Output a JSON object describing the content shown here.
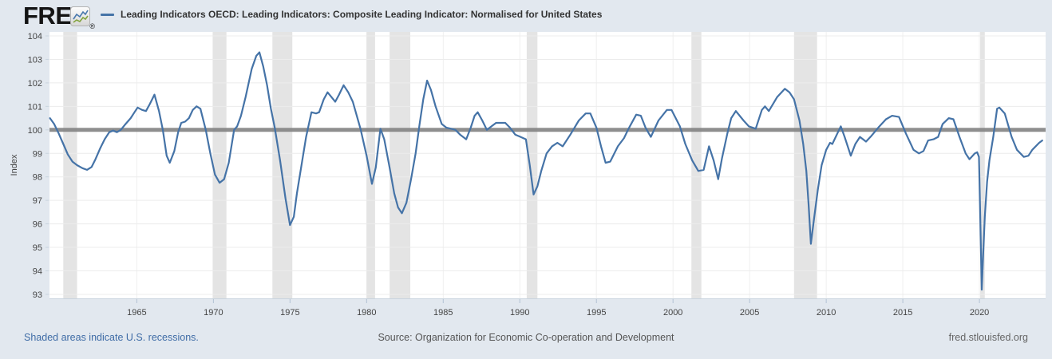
{
  "header": {
    "logo_text": "FRED",
    "logo_registered": "®",
    "legend_label": "Leading Indicators OECD: Leading Indicators: Composite Leading Indicator: Normalised for United States"
  },
  "footer": {
    "recessions_note": "Shaded areas indicate U.S. recessions.",
    "source": "Source: Organization for Economic Co-operation and Development",
    "site": "fred.stlouisfed.org"
  },
  "colors": {
    "background": "#e2e8ef",
    "plot_background": "#ffffff",
    "line": "#4573a7",
    "logo_icon_blue": "#4978ad",
    "logo_icon_green": "#82a33f",
    "reference_line": "#808080",
    "recession_band": "#e4e4e4",
    "h_gridline": "#ececec",
    "v_gridline": "#efefef",
    "axis_line": "#c9d4de",
    "tick_mark": "#b3c2d4",
    "tick_label": "#444444",
    "link": "#3f6ca6"
  },
  "chart_data": {
    "type": "line",
    "title": "Leading Indicators OECD: Leading Indicators: Composite Leading Indicator: Normalised for United States",
    "xlabel": "",
    "ylabel": "Index",
    "xlim": [
      1959.3,
      2024.32
    ],
    "ylim": [
      93,
      104
    ],
    "x_ticks": [
      1965,
      1970,
      1975,
      1980,
      1985,
      1990,
      1995,
      2000,
      2005,
      2010,
      2015,
      2020
    ],
    "y_ticks": [
      93,
      94,
      95,
      96,
      97,
      98,
      99,
      100,
      101,
      102,
      103,
      104
    ],
    "grid": true,
    "legend_position": "top",
    "reference_line_y": 100,
    "recessions": [
      [
        1960.2,
        1961.1
      ],
      [
        1969.95,
        1970.85
      ],
      [
        1973.85,
        1975.15
      ],
      [
        1980.0,
        1980.55
      ],
      [
        1981.5,
        1982.85
      ],
      [
        1990.45,
        1991.15
      ],
      [
        2001.2,
        2001.85
      ],
      [
        2007.9,
        2009.4
      ],
      [
        2020.05,
        2020.35
      ]
    ],
    "series": [
      {
        "name": "Leading Indicators OECD: Leading Indicators: Composite Leading Indicator: Normalised for United States",
        "points": [
          [
            1959.33,
            100.5
          ],
          [
            1959.6,
            100.25
          ],
          [
            1959.9,
            99.85
          ],
          [
            1960.2,
            99.4
          ],
          [
            1960.5,
            98.95
          ],
          [
            1960.8,
            98.65
          ],
          [
            1961.1,
            98.5
          ],
          [
            1961.45,
            98.37
          ],
          [
            1961.75,
            98.3
          ],
          [
            1962.05,
            98.42
          ],
          [
            1962.3,
            98.75
          ],
          [
            1962.6,
            99.2
          ],
          [
            1962.9,
            99.6
          ],
          [
            1963.2,
            99.9
          ],
          [
            1963.45,
            99.97
          ],
          [
            1963.7,
            99.9
          ],
          [
            1963.95,
            100.0
          ],
          [
            1964.2,
            100.2
          ],
          [
            1964.6,
            100.5
          ],
          [
            1964.85,
            100.75
          ],
          [
            1965.05,
            100.95
          ],
          [
            1965.35,
            100.85
          ],
          [
            1965.6,
            100.8
          ],
          [
            1965.85,
            101.1
          ],
          [
            1966.15,
            101.5
          ],
          [
            1966.45,
            100.8
          ],
          [
            1966.7,
            100.0
          ],
          [
            1966.95,
            98.9
          ],
          [
            1967.15,
            98.6
          ],
          [
            1967.45,
            99.1
          ],
          [
            1967.7,
            99.9
          ],
          [
            1967.9,
            100.3
          ],
          [
            1968.15,
            100.35
          ],
          [
            1968.4,
            100.5
          ],
          [
            1968.65,
            100.85
          ],
          [
            1968.9,
            101.0
          ],
          [
            1969.15,
            100.9
          ],
          [
            1969.5,
            100.0
          ],
          [
            1969.8,
            99.0
          ],
          [
            1970.1,
            98.1
          ],
          [
            1970.4,
            97.75
          ],
          [
            1970.7,
            97.9
          ],
          [
            1971.0,
            98.6
          ],
          [
            1971.35,
            100.0
          ],
          [
            1971.55,
            100.15
          ],
          [
            1971.8,
            100.6
          ],
          [
            1972.1,
            101.4
          ],
          [
            1972.5,
            102.6
          ],
          [
            1972.8,
            103.15
          ],
          [
            1973.0,
            103.3
          ],
          [
            1973.25,
            102.7
          ],
          [
            1973.5,
            101.9
          ],
          [
            1973.75,
            100.9
          ],
          [
            1974.0,
            100.1
          ],
          [
            1974.35,
            98.7
          ],
          [
            1974.7,
            97.1
          ],
          [
            1975.0,
            95.95
          ],
          [
            1975.25,
            96.3
          ],
          [
            1975.45,
            97.3
          ],
          [
            1975.8,
            98.7
          ],
          [
            1976.05,
            99.7
          ],
          [
            1976.4,
            100.75
          ],
          [
            1976.7,
            100.7
          ],
          [
            1976.9,
            100.75
          ],
          [
            1977.2,
            101.3
          ],
          [
            1977.45,
            101.6
          ],
          [
            1977.7,
            101.4
          ],
          [
            1977.95,
            101.2
          ],
          [
            1978.2,
            101.5
          ],
          [
            1978.5,
            101.9
          ],
          [
            1978.8,
            101.6
          ],
          [
            1979.1,
            101.2
          ],
          [
            1979.6,
            100.05
          ],
          [
            1980.0,
            98.9
          ],
          [
            1980.35,
            97.7
          ],
          [
            1980.6,
            98.4
          ],
          [
            1980.9,
            100.05
          ],
          [
            1981.15,
            99.6
          ],
          [
            1981.5,
            98.4
          ],
          [
            1981.8,
            97.3
          ],
          [
            1982.05,
            96.7
          ],
          [
            1982.3,
            96.45
          ],
          [
            1982.6,
            96.9
          ],
          [
            1982.9,
            97.9
          ],
          [
            1983.2,
            99.0
          ],
          [
            1983.45,
            100.2
          ],
          [
            1983.7,
            101.3
          ],
          [
            1983.95,
            102.1
          ],
          [
            1984.2,
            101.7
          ],
          [
            1984.5,
            101.0
          ],
          [
            1984.9,
            100.25
          ],
          [
            1985.2,
            100.1
          ],
          [
            1985.5,
            100.05
          ],
          [
            1985.8,
            100.0
          ],
          [
            1986.1,
            99.8
          ],
          [
            1986.5,
            99.6
          ],
          [
            1986.8,
            100.1
          ],
          [
            1987.05,
            100.6
          ],
          [
            1987.25,
            100.75
          ],
          [
            1987.55,
            100.4
          ],
          [
            1987.85,
            100.0
          ],
          [
            1988.15,
            100.15
          ],
          [
            1988.45,
            100.3
          ],
          [
            1989.05,
            100.3
          ],
          [
            1989.35,
            100.1
          ],
          [
            1989.7,
            99.8
          ],
          [
            1990.05,
            99.7
          ],
          [
            1990.4,
            99.6
          ],
          [
            1990.65,
            98.5
          ],
          [
            1990.9,
            97.25
          ],
          [
            1991.15,
            97.6
          ],
          [
            1991.4,
            98.25
          ],
          [
            1991.75,
            99.0
          ],
          [
            1992.1,
            99.3
          ],
          [
            1992.45,
            99.45
          ],
          [
            1992.8,
            99.3
          ],
          [
            1993.3,
            99.8
          ],
          [
            1993.85,
            100.4
          ],
          [
            1994.3,
            100.7
          ],
          [
            1994.6,
            100.7
          ],
          [
            1995.0,
            100.1
          ],
          [
            1995.3,
            99.3
          ],
          [
            1995.6,
            98.6
          ],
          [
            1995.9,
            98.65
          ],
          [
            1996.4,
            99.3
          ],
          [
            1996.8,
            99.65
          ],
          [
            1997.1,
            100.05
          ],
          [
            1997.6,
            100.65
          ],
          [
            1997.9,
            100.6
          ],
          [
            1998.2,
            100.1
          ],
          [
            1998.55,
            99.7
          ],
          [
            1999.05,
            100.4
          ],
          [
            1999.6,
            100.85
          ],
          [
            1999.9,
            100.85
          ],
          [
            2000.45,
            100.15
          ],
          [
            2000.8,
            99.4
          ],
          [
            2001.25,
            98.7
          ],
          [
            2001.65,
            98.25
          ],
          [
            2002.0,
            98.3
          ],
          [
            2002.35,
            99.3
          ],
          [
            2002.65,
            98.7
          ],
          [
            2002.95,
            97.9
          ],
          [
            2003.2,
            98.8
          ],
          [
            2003.55,
            99.85
          ],
          [
            2003.8,
            100.5
          ],
          [
            2004.1,
            100.8
          ],
          [
            2004.6,
            100.4
          ],
          [
            2004.95,
            100.15
          ],
          [
            2005.4,
            100.05
          ],
          [
            2005.8,
            100.85
          ],
          [
            2006.0,
            101.0
          ],
          [
            2006.25,
            100.8
          ],
          [
            2006.8,
            101.4
          ],
          [
            2007.3,
            101.75
          ],
          [
            2007.6,
            101.6
          ],
          [
            2007.9,
            101.3
          ],
          [
            2008.25,
            100.4
          ],
          [
            2008.5,
            99.4
          ],
          [
            2008.7,
            98.25
          ],
          [
            2008.85,
            96.8
          ],
          [
            2009.0,
            95.15
          ],
          [
            2009.2,
            96.2
          ],
          [
            2009.45,
            97.45
          ],
          [
            2009.7,
            98.5
          ],
          [
            2010.0,
            99.15
          ],
          [
            2010.25,
            99.45
          ],
          [
            2010.4,
            99.4
          ],
          [
            2010.8,
            99.95
          ],
          [
            2010.95,
            100.15
          ],
          [
            2011.2,
            99.7
          ],
          [
            2011.6,
            98.9
          ],
          [
            2011.9,
            99.4
          ],
          [
            2012.2,
            99.7
          ],
          [
            2012.6,
            99.5
          ],
          [
            2012.95,
            99.75
          ],
          [
            2013.4,
            100.1
          ],
          [
            2013.9,
            100.45
          ],
          [
            2014.3,
            100.6
          ],
          [
            2014.75,
            100.55
          ],
          [
            2015.2,
            99.85
          ],
          [
            2015.7,
            99.15
          ],
          [
            2016.05,
            99.0
          ],
          [
            2016.35,
            99.1
          ],
          [
            2016.65,
            99.55
          ],
          [
            2017.0,
            99.6
          ],
          [
            2017.3,
            99.7
          ],
          [
            2017.6,
            100.25
          ],
          [
            2018.0,
            100.5
          ],
          [
            2018.3,
            100.45
          ],
          [
            2018.7,
            99.7
          ],
          [
            2019.1,
            99.0
          ],
          [
            2019.35,
            98.75
          ],
          [
            2019.7,
            99.0
          ],
          [
            2019.85,
            99.05
          ],
          [
            2019.97,
            98.85
          ],
          [
            2020.08,
            95.5
          ],
          [
            2020.15,
            93.2
          ],
          [
            2020.25,
            94.8
          ],
          [
            2020.35,
            96.3
          ],
          [
            2020.5,
            97.8
          ],
          [
            2020.65,
            98.7
          ],
          [
            2020.9,
            99.7
          ],
          [
            2021.15,
            100.9
          ],
          [
            2021.3,
            100.95
          ],
          [
            2021.65,
            100.7
          ],
          [
            2022.1,
            99.7
          ],
          [
            2022.45,
            99.15
          ],
          [
            2022.9,
            98.85
          ],
          [
            2023.2,
            98.9
          ],
          [
            2023.45,
            99.15
          ],
          [
            2023.9,
            99.45
          ],
          [
            2024.1,
            99.55
          ]
        ]
      }
    ]
  }
}
